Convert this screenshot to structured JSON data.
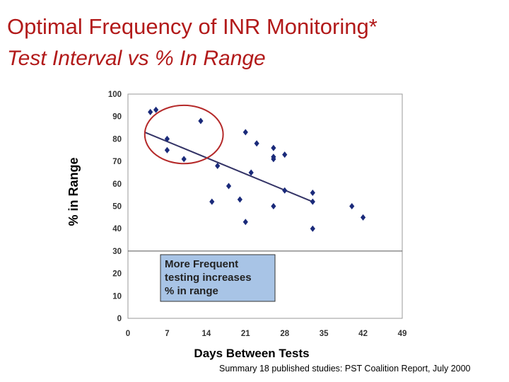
{
  "slide": {
    "title": "Optimal Frequency of INR Monitoring*",
    "subtitle": "Test Interval vs % In Range",
    "footnote": "Summary 18 published studies: PST Coalition Report, July 2000"
  },
  "chart_data": {
    "type": "scatter",
    "xlabel": "Days Between Tests",
    "ylabel": "% in Range",
    "xlim": [
      0,
      49
    ],
    "ylim": [
      0,
      100
    ],
    "xticks": [
      0,
      7,
      14,
      21,
      28,
      35,
      42,
      49
    ],
    "yticks": [
      0,
      10,
      20,
      30,
      40,
      50,
      60,
      70,
      80,
      90,
      100
    ],
    "grid": false,
    "marker_color": "#1a2a7a",
    "points": [
      {
        "x": 4,
        "y": 92
      },
      {
        "x": 5,
        "y": 93
      },
      {
        "x": 7,
        "y": 80
      },
      {
        "x": 7,
        "y": 75
      },
      {
        "x": 10,
        "y": 71
      },
      {
        "x": 13,
        "y": 88
      },
      {
        "x": 15,
        "y": 52
      },
      {
        "x": 16,
        "y": 68
      },
      {
        "x": 18,
        "y": 59
      },
      {
        "x": 20,
        "y": 53
      },
      {
        "x": 21,
        "y": 83
      },
      {
        "x": 21,
        "y": 43
      },
      {
        "x": 22,
        "y": 65
      },
      {
        "x": 23,
        "y": 78
      },
      {
        "x": 26,
        "y": 76
      },
      {
        "x": 26,
        "y": 72
      },
      {
        "x": 26,
        "y": 71
      },
      {
        "x": 26,
        "y": 50
      },
      {
        "x": 28,
        "y": 73
      },
      {
        "x": 28,
        "y": 57
      },
      {
        "x": 33,
        "y": 56
      },
      {
        "x": 33,
        "y": 52
      },
      {
        "x": 33,
        "y": 40
      },
      {
        "x": 40,
        "y": 50
      },
      {
        "x": 42,
        "y": 45
      }
    ],
    "trendline": {
      "x": [
        3,
        33
      ],
      "y": [
        83,
        52
      ],
      "color": "#333366"
    },
    "highlight_circle": {
      "center_x": 10,
      "center_y": 82,
      "radius_x": 7,
      "radius_y": 13,
      "color": "#b52a2a"
    },
    "annotation": {
      "lines": [
        "More Frequent",
        "testing increases",
        "% in range"
      ],
      "fill": "#a8c4e6"
    }
  }
}
